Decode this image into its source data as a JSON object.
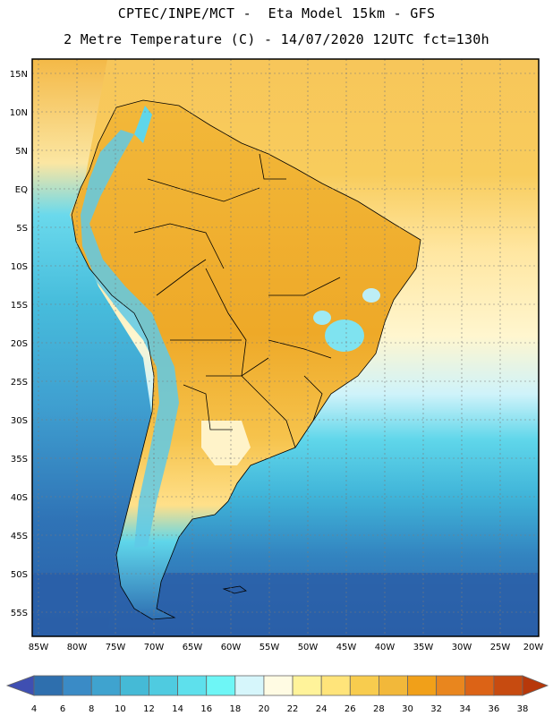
{
  "header": {
    "line1": "CPTEC/INPE/MCT -  Eta Model 15km - GFS",
    "line2": "2 Metre Temperature (C) - 14/07/2020 12UTC fct=130h"
  },
  "map": {
    "lat_labels": [
      "15N",
      "10N",
      "5N",
      "EQ",
      "5S",
      "10S",
      "15S",
      "20S",
      "25S",
      "30S",
      "35S",
      "40S",
      "45S",
      "50S",
      "55S"
    ],
    "lon_labels": [
      "85W",
      "80W",
      "75W",
      "70W",
      "65W",
      "60W",
      "55W",
      "50W",
      "45W",
      "40W",
      "35W",
      "30W",
      "25W",
      "20W"
    ],
    "colors": {
      "ocean_south": "#2a5fa8",
      "ocean_mid": "#3f9fd0",
      "ocean_cool": "#5bd7ea",
      "ocean_warm": "#ffe39a",
      "land": "#f0b43c",
      "andes": "#5fc9e6"
    }
  },
  "colorbar": {
    "labels": [
      "4",
      "6",
      "8",
      "10",
      "12",
      "14",
      "16",
      "18",
      "20",
      "22",
      "24",
      "26",
      "28",
      "30",
      "32",
      "34",
      "36",
      "38"
    ],
    "colors": [
      "#3f4fb2",
      "#2e6fae",
      "#3a8bc6",
      "#3fa3cf",
      "#45bad6",
      "#4fcbe0",
      "#5ee0ec",
      "#6ef6f6",
      "#d6f6fb",
      "#fffbe3",
      "#fff39a",
      "#ffe47a",
      "#f8cc4e",
      "#f2b83a",
      "#f1a019",
      "#e9861e",
      "#dc6316",
      "#c74b10",
      "#b7380a"
    ]
  }
}
